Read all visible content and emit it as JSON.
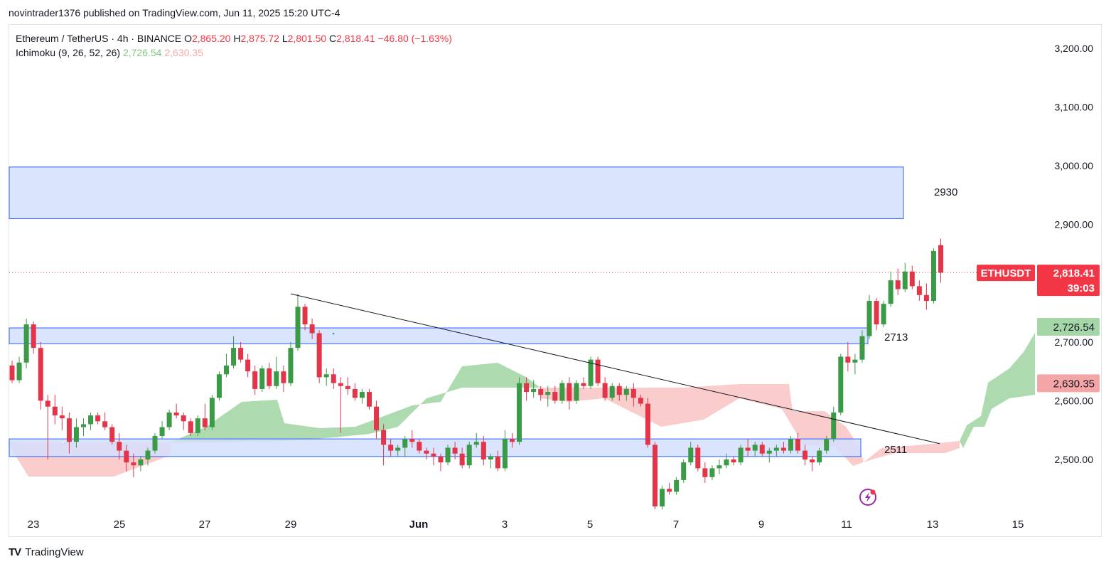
{
  "header": {
    "text": "novintrader1376 published on TradingView.com, Jun 11, 2025 15:20 UTC-4"
  },
  "legend": {
    "symbol": "Ethereum / TetherUS · 4h · BINANCE",
    "o_label": "O",
    "o_val": "2,865.20",
    "h_label": "H",
    "h_val": "2,875.72",
    "l_label": "L",
    "l_val": "2,801.50",
    "c_label": "C",
    "c_val": "2,818.41",
    "change": "−46.80 (−1.63%)",
    "ichimoku_label": "Ichimoku (9, 26, 52, 26)",
    "ichimoku_a": "2,726.54",
    "ichimoku_b": "2,630.35"
  },
  "footer": {
    "brand": "TradingView",
    "logo_text": "TV"
  },
  "colors": {
    "up": "#089981",
    "down": "#f23645",
    "candle_up": "#3a9a46",
    "candle_down": "#e2354a",
    "zone": "#d3dffd",
    "zone_border": "#2962ff",
    "cloud_bull": "#a5d6a7",
    "cloud_bear": "#f9c6c5"
  },
  "chart_data": {
    "type": "candlestick",
    "symbol": "ETHUSDT",
    "timeframe": "4h",
    "ylim": [
      2415,
      3240
    ],
    "y_ticks": [
      "3,200.00",
      "3,100.00",
      "3,000.00",
      "2,900.00",
      "2,800.00",
      "2,700.00",
      "2,600.00",
      "2,500.00"
    ],
    "x_ticks": [
      "23",
      "25",
      "27",
      "29",
      "Jun",
      "3",
      "5",
      "7",
      "9",
      "11",
      "13",
      "15"
    ],
    "price_label": {
      "name": "ETHUSDT",
      "price": "2,818.41",
      "countdown": "39:03",
      "value": 2818.41
    },
    "ichimoku_labels": [
      {
        "text": "2,726.54",
        "value": 2726.54
      },
      {
        "text": "2,630.35",
        "value": 2630.35
      }
    ],
    "zones": [
      {
        "label": "2930",
        "low": 2910,
        "high": 2998
      },
      {
        "label": "2713",
        "low": 2697,
        "high": 2724
      },
      {
        "label": "2511",
        "low": 2505,
        "high": 2535
      }
    ],
    "trendline": {
      "from": {
        "date": "May 29 04:00",
        "price": 2782
      },
      "to": {
        "date": "Jun 13 04:00",
        "price": 2527
      }
    },
    "candles": [
      [
        2660,
        2668,
        2630,
        2635
      ],
      [
        2635,
        2675,
        2630,
        2665
      ],
      [
        2665,
        2740,
        2655,
        2730
      ],
      [
        2730,
        2735,
        2680,
        2690
      ],
      [
        2690,
        2700,
        2585,
        2600
      ],
      [
        2600,
        2610,
        2500,
        2590
      ],
      [
        2590,
        2610,
        2560,
        2575
      ],
      [
        2575,
        2590,
        2550,
        2570
      ],
      [
        2570,
        2580,
        2510,
        2530
      ],
      [
        2530,
        2570,
        2520,
        2555
      ],
      [
        2555,
        2570,
        2540,
        2560
      ],
      [
        2560,
        2580,
        2550,
        2575
      ],
      [
        2575,
        2580,
        2560,
        2565
      ],
      [
        2565,
        2580,
        2550,
        2555
      ],
      [
        2555,
        2560,
        2525,
        2530
      ],
      [
        2530,
        2545,
        2500,
        2515
      ],
      [
        2515,
        2525,
        2480,
        2495
      ],
      [
        2495,
        2510,
        2470,
        2490
      ],
      [
        2490,
        2505,
        2480,
        2500
      ],
      [
        2500,
        2520,
        2490,
        2515
      ],
      [
        2515,
        2545,
        2510,
        2540
      ],
      [
        2540,
        2565,
        2535,
        2555
      ],
      [
        2555,
        2585,
        2550,
        2580
      ],
      [
        2580,
        2595,
        2570,
        2575
      ],
      [
        2575,
        2580,
        2550,
        2565
      ],
      [
        2565,
        2570,
        2540,
        2545
      ],
      [
        2545,
        2575,
        2540,
        2570
      ],
      [
        2570,
        2595,
        2550,
        2555
      ],
      [
        2555,
        2610,
        2550,
        2605
      ],
      [
        2605,
        2650,
        2600,
        2645
      ],
      [
        2645,
        2680,
        2640,
        2660
      ],
      [
        2660,
        2710,
        2655,
        2690
      ],
      [
        2690,
        2700,
        2665,
        2670
      ],
      [
        2670,
        2680,
        2640,
        2650
      ],
      [
        2650,
        2660,
        2610,
        2620
      ],
      [
        2620,
        2660,
        2615,
        2655
      ],
      [
        2655,
        2665,
        2620,
        2625
      ],
      [
        2625,
        2675,
        2620,
        2650
      ],
      [
        2650,
        2660,
        2615,
        2630
      ],
      [
        2630,
        2700,
        2625,
        2690
      ],
      [
        2690,
        2782,
        2685,
        2760
      ],
      [
        2760,
        2765,
        2720,
        2730
      ],
      [
        2730,
        2740,
        2705,
        2715
      ],
      [
        2715,
        2720,
        2630,
        2640
      ],
      [
        2640,
        2655,
        2625,
        2645
      ],
      [
        2645,
        2655,
        2620,
        2630
      ],
      [
        2630,
        2640,
        2545,
        2625
      ],
      [
        2625,
        2640,
        2610,
        2620
      ],
      [
        2620,
        2630,
        2600,
        2605
      ],
      [
        2605,
        2620,
        2595,
        2615
      ],
      [
        2615,
        2620,
        2585,
        2590
      ],
      [
        2590,
        2600,
        2535,
        2550
      ],
      [
        2550,
        2560,
        2490,
        2525
      ],
      [
        2525,
        2535,
        2505,
        2515
      ],
      [
        2515,
        2525,
        2505,
        2520
      ],
      [
        2520,
        2540,
        2505,
        2535
      ],
      [
        2535,
        2550,
        2520,
        2530
      ],
      [
        2530,
        2535,
        2510,
        2515
      ],
      [
        2515,
        2520,
        2500,
        2510
      ],
      [
        2510,
        2520,
        2490,
        2505
      ],
      [
        2505,
        2510,
        2480,
        2495
      ],
      [
        2495,
        2525,
        2490,
        2520
      ],
      [
        2520,
        2530,
        2500,
        2510
      ],
      [
        2510,
        2520,
        2485,
        2490
      ],
      [
        2490,
        2530,
        2485,
        2525
      ],
      [
        2525,
        2545,
        2520,
        2530
      ],
      [
        2530,
        2540,
        2490,
        2500
      ],
      [
        2500,
        2510,
        2485,
        2505
      ],
      [
        2505,
        2515,
        2480,
        2485
      ],
      [
        2485,
        2550,
        2480,
        2535
      ],
      [
        2535,
        2545,
        2520,
        2530
      ],
      [
        2530,
        2640,
        2525,
        2630
      ],
      [
        2630,
        2640,
        2600,
        2615
      ],
      [
        2615,
        2635,
        2605,
        2620
      ],
      [
        2620,
        2625,
        2600,
        2610
      ],
      [
        2610,
        2625,
        2590,
        2615
      ],
      [
        2615,
        2625,
        2595,
        2600
      ],
      [
        2600,
        2635,
        2595,
        2630
      ],
      [
        2630,
        2640,
        2585,
        2600
      ],
      [
        2600,
        2635,
        2595,
        2630
      ],
      [
        2630,
        2640,
        2620,
        2625
      ],
      [
        2625,
        2675,
        2620,
        2670
      ],
      [
        2670,
        2675,
        2625,
        2630
      ],
      [
        2630,
        2640,
        2600,
        2605
      ],
      [
        2605,
        2630,
        2600,
        2625
      ],
      [
        2625,
        2630,
        2600,
        2610
      ],
      [
        2610,
        2625,
        2600,
        2620
      ],
      [
        2620,
        2630,
        2590,
        2605
      ],
      [
        2605,
        2610,
        2590,
        2595
      ],
      [
        2595,
        2605,
        2520,
        2525
      ],
      [
        2525,
        2530,
        2415,
        2420
      ],
      [
        2420,
        2455,
        2415,
        2450
      ],
      [
        2450,
        2460,
        2440,
        2445
      ],
      [
        2445,
        2470,
        2440,
        2465
      ],
      [
        2465,
        2500,
        2460,
        2495
      ],
      [
        2495,
        2530,
        2490,
        2520
      ],
      [
        2520,
        2525,
        2480,
        2485
      ],
      [
        2485,
        2495,
        2460,
        2470
      ],
      [
        2470,
        2490,
        2465,
        2485
      ],
      [
        2485,
        2500,
        2475,
        2490
      ],
      [
        2490,
        2510,
        2485,
        2500
      ],
      [
        2500,
        2505,
        2490,
        2495
      ],
      [
        2495,
        2525,
        2490,
        2520
      ],
      [
        2520,
        2535,
        2505,
        2515
      ],
      [
        2515,
        2530,
        2505,
        2525
      ],
      [
        2525,
        2530,
        2505,
        2510
      ],
      [
        2510,
        2520,
        2495,
        2515
      ],
      [
        2515,
        2525,
        2505,
        2520
      ],
      [
        2520,
        2530,
        2510,
        2515
      ],
      [
        2515,
        2540,
        2510,
        2535
      ],
      [
        2535,
        2545,
        2510,
        2515
      ],
      [
        2515,
        2525,
        2490,
        2500
      ],
      [
        2500,
        2505,
        2480,
        2495
      ],
      [
        2495,
        2520,
        2490,
        2515
      ],
      [
        2515,
        2540,
        2510,
        2535
      ],
      [
        2535,
        2590,
        2530,
        2580
      ],
      [
        2580,
        2680,
        2575,
        2675
      ],
      [
        2675,
        2700,
        2650,
        2665
      ],
      [
        2665,
        2680,
        2645,
        2670
      ],
      [
        2670,
        2720,
        2665,
        2710
      ],
      [
        2710,
        2780,
        2705,
        2770
      ],
      [
        2770,
        2775,
        2720,
        2730
      ],
      [
        2730,
        2770,
        2725,
        2765
      ],
      [
        2765,
        2820,
        2760,
        2805
      ],
      [
        2805,
        2825,
        2780,
        2790
      ],
      [
        2790,
        2835,
        2785,
        2820
      ],
      [
        2820,
        2830,
        2790,
        2795
      ],
      [
        2795,
        2805,
        2770,
        2780
      ],
      [
        2780,
        2800,
        2755,
        2770
      ],
      [
        2770,
        2860,
        2765,
        2855
      ],
      [
        2865,
        2876,
        2801,
        2818
      ]
    ]
  }
}
